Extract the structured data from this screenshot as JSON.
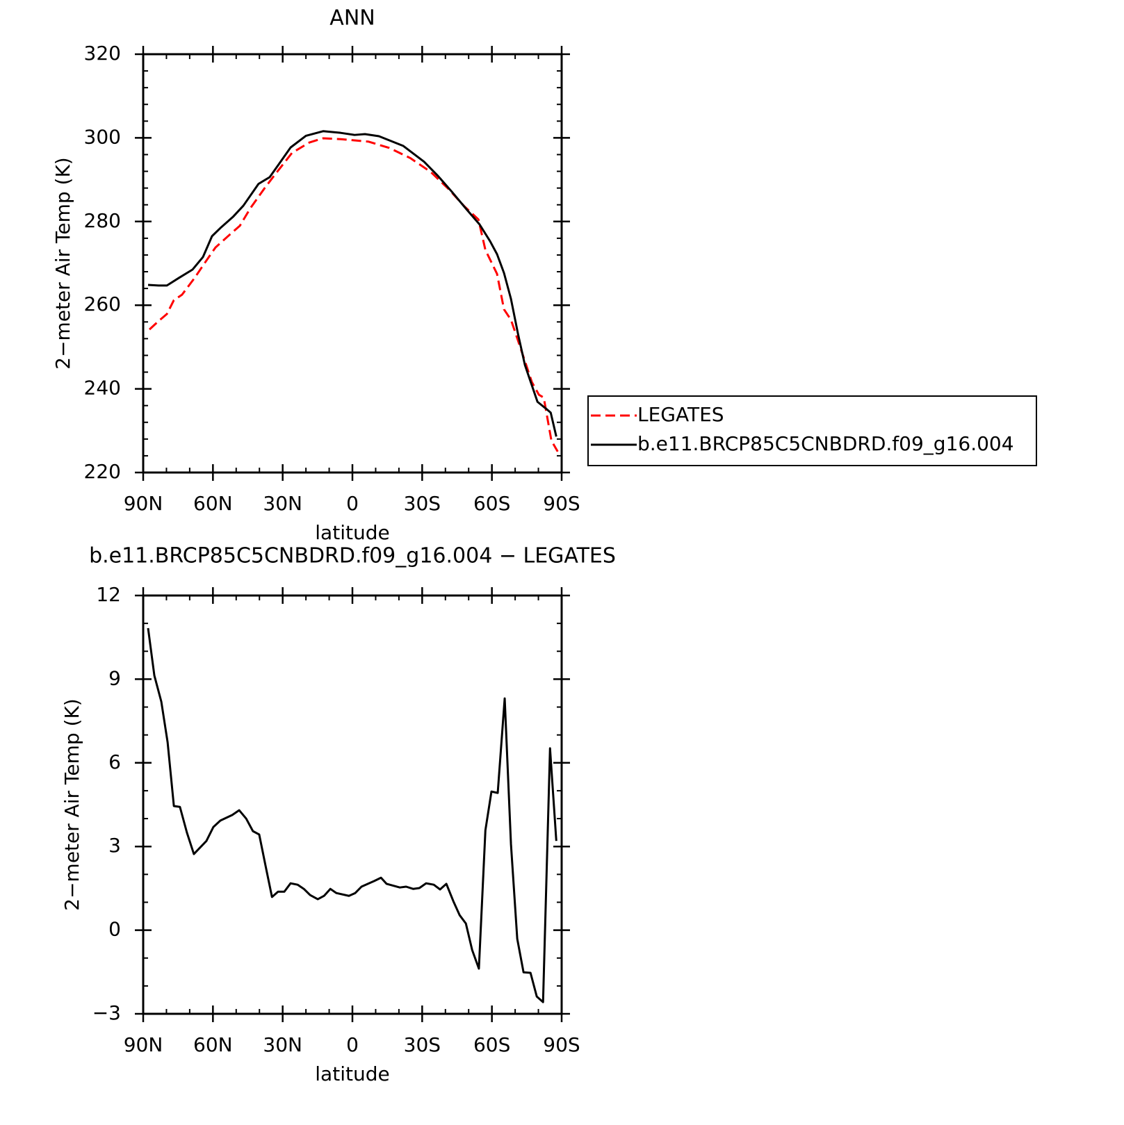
{
  "chart_data": [
    {
      "type": "line",
      "title": "ANN",
      "xlabel": "latitude",
      "ylabel": "2−meter Air Temp (K)",
      "xlim": [
        90,
        -90
      ],
      "ylim": [
        220,
        320
      ],
      "xticks": [
        {
          "value": 90,
          "label": "90N"
        },
        {
          "value": 60,
          "label": "60N"
        },
        {
          "value": 30,
          "label": "30N"
        },
        0,
        {
          "value": -30,
          "label": "30S"
        },
        {
          "value": -60,
          "label": "60S"
        },
        {
          "value": -90,
          "label": "90S"
        }
      ],
      "yticks": [
        220,
        240,
        260,
        280,
        300,
        320
      ],
      "xminorticks": [
        80,
        70,
        50,
        40,
        20,
        10,
        -10,
        -20,
        -40,
        -50,
        -70,
        -80
      ],
      "yminorticks": [
        224,
        228,
        232,
        236,
        244,
        248,
        252,
        256,
        264,
        268,
        272,
        276,
        284,
        288,
        292,
        296,
        304,
        308,
        312,
        316
      ],
      "legend": "outside right",
      "series": [
        {
          "name": "LEGATES",
          "color": "#ff0000",
          "dash": true,
          "x": [
            87.3,
            83.4,
            79.8,
            76.8,
            73.3,
            67.9,
            63.4,
            58.9,
            52.9,
            48.4,
            44,
            38,
            33.5,
            26,
            18.5,
            12.6,
            5.1,
            -0.9,
            -6.9,
            -15.8,
            -24.8,
            -33.8,
            -41.3,
            -48.2,
            -54.2,
            -57.2,
            -62.2,
            -65.2,
            -68.2,
            -71.2,
            -74.2,
            -77.2,
            -80.2,
            -82.3,
            -85.6,
            -88.3
          ],
          "values": [
            254.2,
            256.2,
            257.9,
            261.2,
            262.5,
            266.5,
            270.2,
            273.8,
            276.8,
            279,
            283.1,
            287.8,
            291.1,
            296.4,
            298.9,
            299.9,
            299.7,
            299.4,
            299.1,
            297.6,
            295.2,
            291.8,
            287.8,
            283.6,
            280.5,
            273.2,
            267.5,
            259,
            256.5,
            251.6,
            246.6,
            241.6,
            238.6,
            237.9,
            227.6,
            225
          ]
        },
        {
          "name": "b.e11.BRCP85C5CNBDRD.f09_g16.004",
          "color": "#000000",
          "dash": false,
          "x": [
            87.9,
            83.4,
            79.8,
            74.7,
            68.8,
            64.3,
            60.4,
            56.5,
            51.4,
            46.9,
            40.4,
            35.6,
            31.4,
            26.6,
            20,
            12.6,
            5.1,
            -0.9,
            -5.4,
            -11.4,
            -21.8,
            -30.8,
            -36.8,
            -42.8,
            -48.8,
            -54.7,
            -59.2,
            -62.2,
            -65.2,
            -68.2,
            -71.2,
            -74.2,
            -79.6,
            -83.2,
            -85.3,
            -87.7
          ],
          "values": [
            264.85,
            264.7,
            264.7,
            266.5,
            268.5,
            271.5,
            276.5,
            278.6,
            281.1,
            283.8,
            289,
            290.6,
            293.9,
            297.7,
            300.5,
            301.6,
            301.2,
            300.7,
            300.9,
            300.4,
            298.1,
            294.3,
            290.9,
            287.1,
            283.1,
            279.3,
            275.3,
            272.2,
            267.7,
            261.5,
            253.2,
            245.7,
            236.9,
            235.3,
            234.3,
            228.6
          ]
        }
      ]
    },
    {
      "type": "line",
      "title": "b.e11.BRCP85C5CNBDRD.f09_g16.004 − LEGATES",
      "xlabel": "latitude",
      "ylabel": "2−meter Air Temp (K)",
      "xlim": [
        90,
        -90
      ],
      "ylim": [
        -3,
        12
      ],
      "xticks": [
        {
          "value": 90,
          "label": "90N"
        },
        {
          "value": 60,
          "label": "60N"
        },
        {
          "value": 30,
          "label": "30N"
        },
        0,
        {
          "value": -30,
          "label": "30S"
        },
        {
          "value": -60,
          "label": "60S"
        },
        {
          "value": -90,
          "label": "90S"
        }
      ],
      "yticks": [
        {
          "value": -3,
          "label": "−3"
        },
        0,
        3,
        6,
        9,
        12
      ],
      "xminorticks": [
        80,
        70,
        50,
        40,
        20,
        10,
        -10,
        -20,
        -40,
        -50,
        -70,
        -80
      ],
      "yminorticks": [
        -2,
        -1,
        1,
        2,
        4,
        5,
        7,
        8,
        10,
        11
      ],
      "series": [
        {
          "color": "#000000",
          "dash": false,
          "x": [
            87.9,
            85.2,
            82.2,
            79.5,
            76.8,
            74.2,
            71.2,
            68.2,
            62.8,
            59.8,
            56.8,
            51.7,
            48.7,
            45.7,
            42.8,
            40.1,
            37.3,
            34.6,
            32,
            29.3,
            26.6,
            23.6,
            20.9,
            18.2,
            14.9,
            12.2,
            9.5,
            6.9,
            1.5,
            -1.2,
            -3.9,
            -9.3,
            -12.3,
            -14.7,
            -20.4,
            -23.1,
            -26.1,
            -28.8,
            -31.7,
            -35,
            -37.7,
            -40.4,
            -43.4,
            -46.1,
            -48.8,
            -51.5,
            -54.4,
            -57.2,
            -59.8,
            -62.5,
            -65.5,
            -68.2,
            -70.9,
            -73.6,
            -76.6,
            -79.3,
            -82,
            -85,
            -87.7
          ],
          "values": [
            10.83,
            9.13,
            8.19,
            6.74,
            4.45,
            4.42,
            3.5,
            2.73,
            3.2,
            3.7,
            3.93,
            4.13,
            4.3,
            4.0,
            3.55,
            3.43,
            2.28,
            1.19,
            1.38,
            1.38,
            1.68,
            1.63,
            1.48,
            1.26,
            1.11,
            1.23,
            1.48,
            1.33,
            1.23,
            1.33,
            1.56,
            1.76,
            1.88,
            1.66,
            1.53,
            1.56,
            1.48,
            1.51,
            1.68,
            1.63,
            1.46,
            1.66,
            1.04,
            0.54,
            0.24,
            -0.71,
            -1.38,
            3.58,
            4.97,
            4.92,
            8.31,
            3.08,
            -0.31,
            -1.51,
            -1.53,
            -2.38,
            -2.58,
            6.52,
            3.2
          ]
        }
      ]
    }
  ]
}
